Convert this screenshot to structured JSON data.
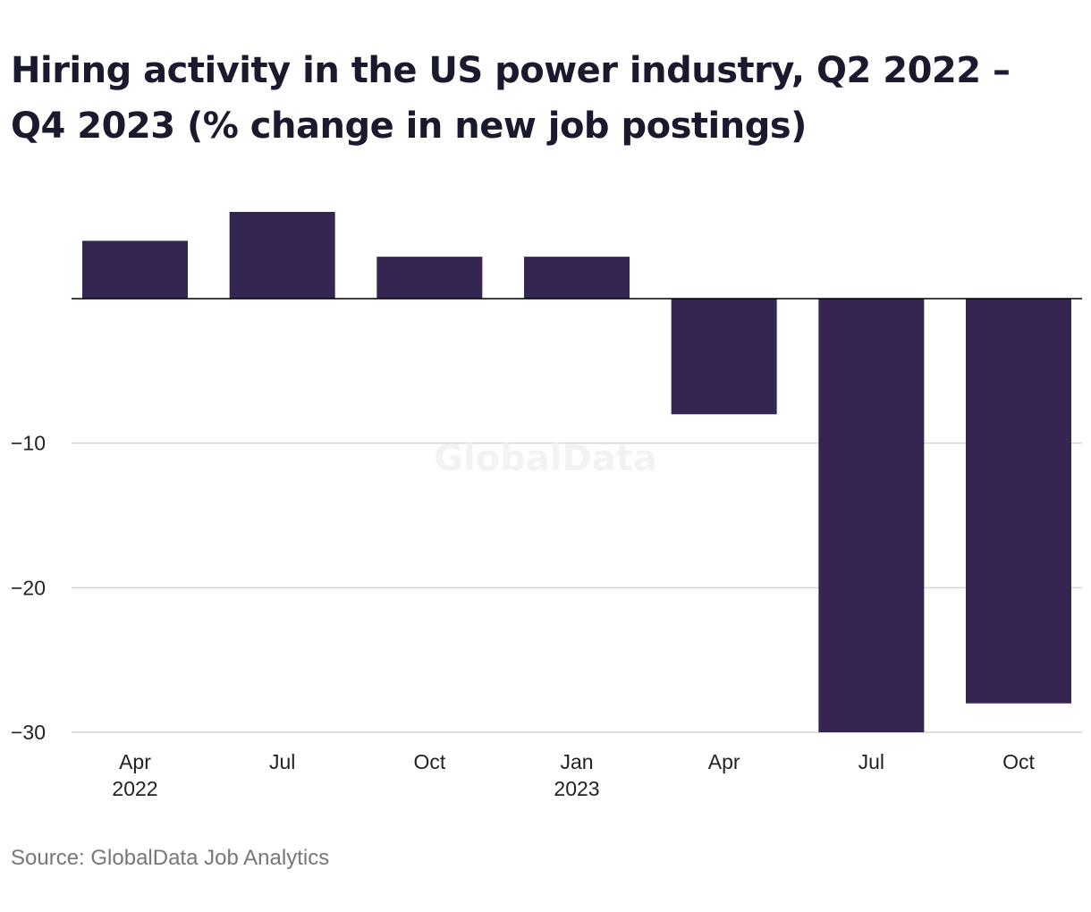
{
  "chart_data": {
    "type": "bar",
    "title": "Hiring activity in the US power industry, Q2 2022 – Q4 2023 (% change in new job postings)",
    "categories": [
      {
        "label": "Apr",
        "sub": "2022"
      },
      {
        "label": "Jul",
        "sub": ""
      },
      {
        "label": "Oct",
        "sub": ""
      },
      {
        "label": "Jan",
        "sub": "2023"
      },
      {
        "label": "Apr",
        "sub": ""
      },
      {
        "label": "Jul",
        "sub": ""
      },
      {
        "label": "Oct",
        "sub": ""
      }
    ],
    "values": [
      4.0,
      6.0,
      2.9,
      2.9,
      -8.0,
      -30.0,
      -28.0
    ],
    "ylim": [
      -30,
      7
    ],
    "yticks": [
      -10,
      -20,
      -30
    ],
    "ytick_labels": [
      "−10",
      "−20",
      "−30"
    ],
    "grid": true,
    "legend": "none",
    "bar_color": "#352551",
    "xlabel": "",
    "ylabel": ""
  },
  "watermark": "GlobalData",
  "source": "Source: GlobalData Job Analytics"
}
